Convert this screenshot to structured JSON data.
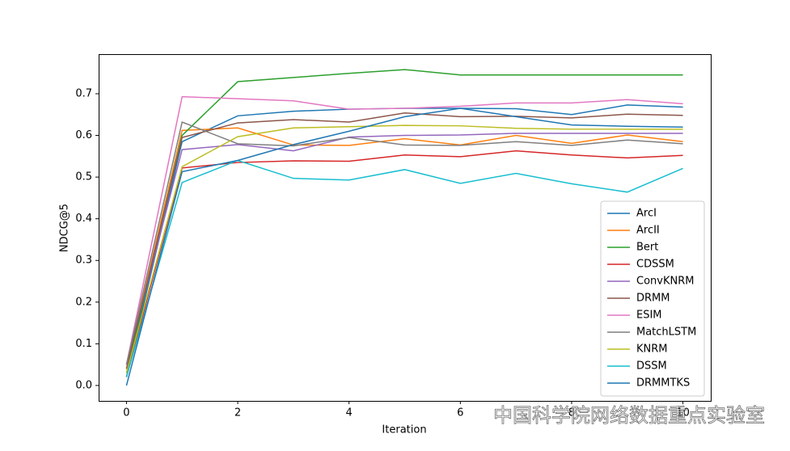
{
  "chart_data": {
    "type": "line",
    "xlabel": "Iteration",
    "ylabel": "NDCG@5",
    "x": [
      0,
      1,
      2,
      3,
      4,
      5,
      6,
      7,
      8,
      9,
      10
    ],
    "xlim": [
      -0.5,
      10.5
    ],
    "xticks": [
      0,
      2,
      4,
      6,
      8,
      10
    ],
    "ylim": [
      -0.037,
      0.795
    ],
    "yticks": [
      {
        "value": 0,
        "label": "0.0"
      },
      0.1,
      0.2,
      0.3,
      0.4,
      0.5,
      0.6,
      0.7
    ],
    "legend": "lower right",
    "watermark": "中国科学院网络数据重点实验室",
    "series": [
      {
        "name": "ArcI",
        "color": "#1f77b4",
        "values": [
          0.02,
          0.585,
          0.647,
          0.658,
          0.663,
          0.665,
          0.665,
          0.664,
          0.65,
          0.673,
          0.668
        ]
      },
      {
        "name": "ArcII",
        "color": "#ff7f0e",
        "values": [
          0.04,
          0.612,
          0.618,
          0.577,
          0.576,
          0.592,
          0.577,
          0.6,
          0.581,
          0.601,
          0.585
        ]
      },
      {
        "name": "Bert",
        "color": "#2ca02c",
        "values": [
          0.03,
          0.6,
          0.729,
          0.739,
          0.749,
          0.758,
          0.745,
          0.745,
          0.745,
          0.745,
          0.745
        ]
      },
      {
        "name": "CDSSM",
        "color": "#d62728",
        "values": [
          0.02,
          0.522,
          0.535,
          0.539,
          0.538,
          0.553,
          0.549,
          0.563,
          0.553,
          0.546,
          0.552
        ]
      },
      {
        "name": "ConvKNRM",
        "color": "#9467bd",
        "values": [
          0.05,
          0.566,
          0.578,
          0.563,
          0.596,
          0.6,
          0.601,
          0.605,
          0.605,
          0.605,
          0.605
        ]
      },
      {
        "name": "DRMM",
        "color": "#8c564b",
        "values": [
          0.04,
          0.595,
          0.63,
          0.638,
          0.632,
          0.654,
          0.645,
          0.646,
          0.642,
          0.651,
          0.648
        ]
      },
      {
        "name": "ESIM",
        "color": "#e377c2",
        "values": [
          0.05,
          0.693,
          0.688,
          0.683,
          0.663,
          0.665,
          0.67,
          0.678,
          0.678,
          0.686,
          0.676
        ]
      },
      {
        "name": "MatchLSTM",
        "color": "#7f7f7f",
        "values": [
          0.05,
          0.632,
          0.58,
          0.575,
          0.595,
          0.577,
          0.576,
          0.585,
          0.576,
          0.589,
          0.58
        ]
      },
      {
        "name": "KNRM",
        "color": "#bcbd22",
        "values": [
          0.03,
          0.525,
          0.597,
          0.618,
          0.621,
          0.624,
          0.623,
          0.617,
          0.615,
          0.615,
          0.615
        ]
      },
      {
        "name": "DSSM",
        "color": "#17becf",
        "values": [
          0.02,
          0.487,
          0.54,
          0.497,
          0.493,
          0.518,
          0.485,
          0.509,
          0.484,
          0.464,
          0.521
        ]
      },
      {
        "name": "DRMMTKS",
        "color": "#1f77b4",
        "values": [
          0.0,
          0.513,
          0.54,
          0.578,
          0.61,
          0.645,
          0.665,
          0.645,
          0.625,
          0.622,
          0.62
        ]
      }
    ]
  }
}
